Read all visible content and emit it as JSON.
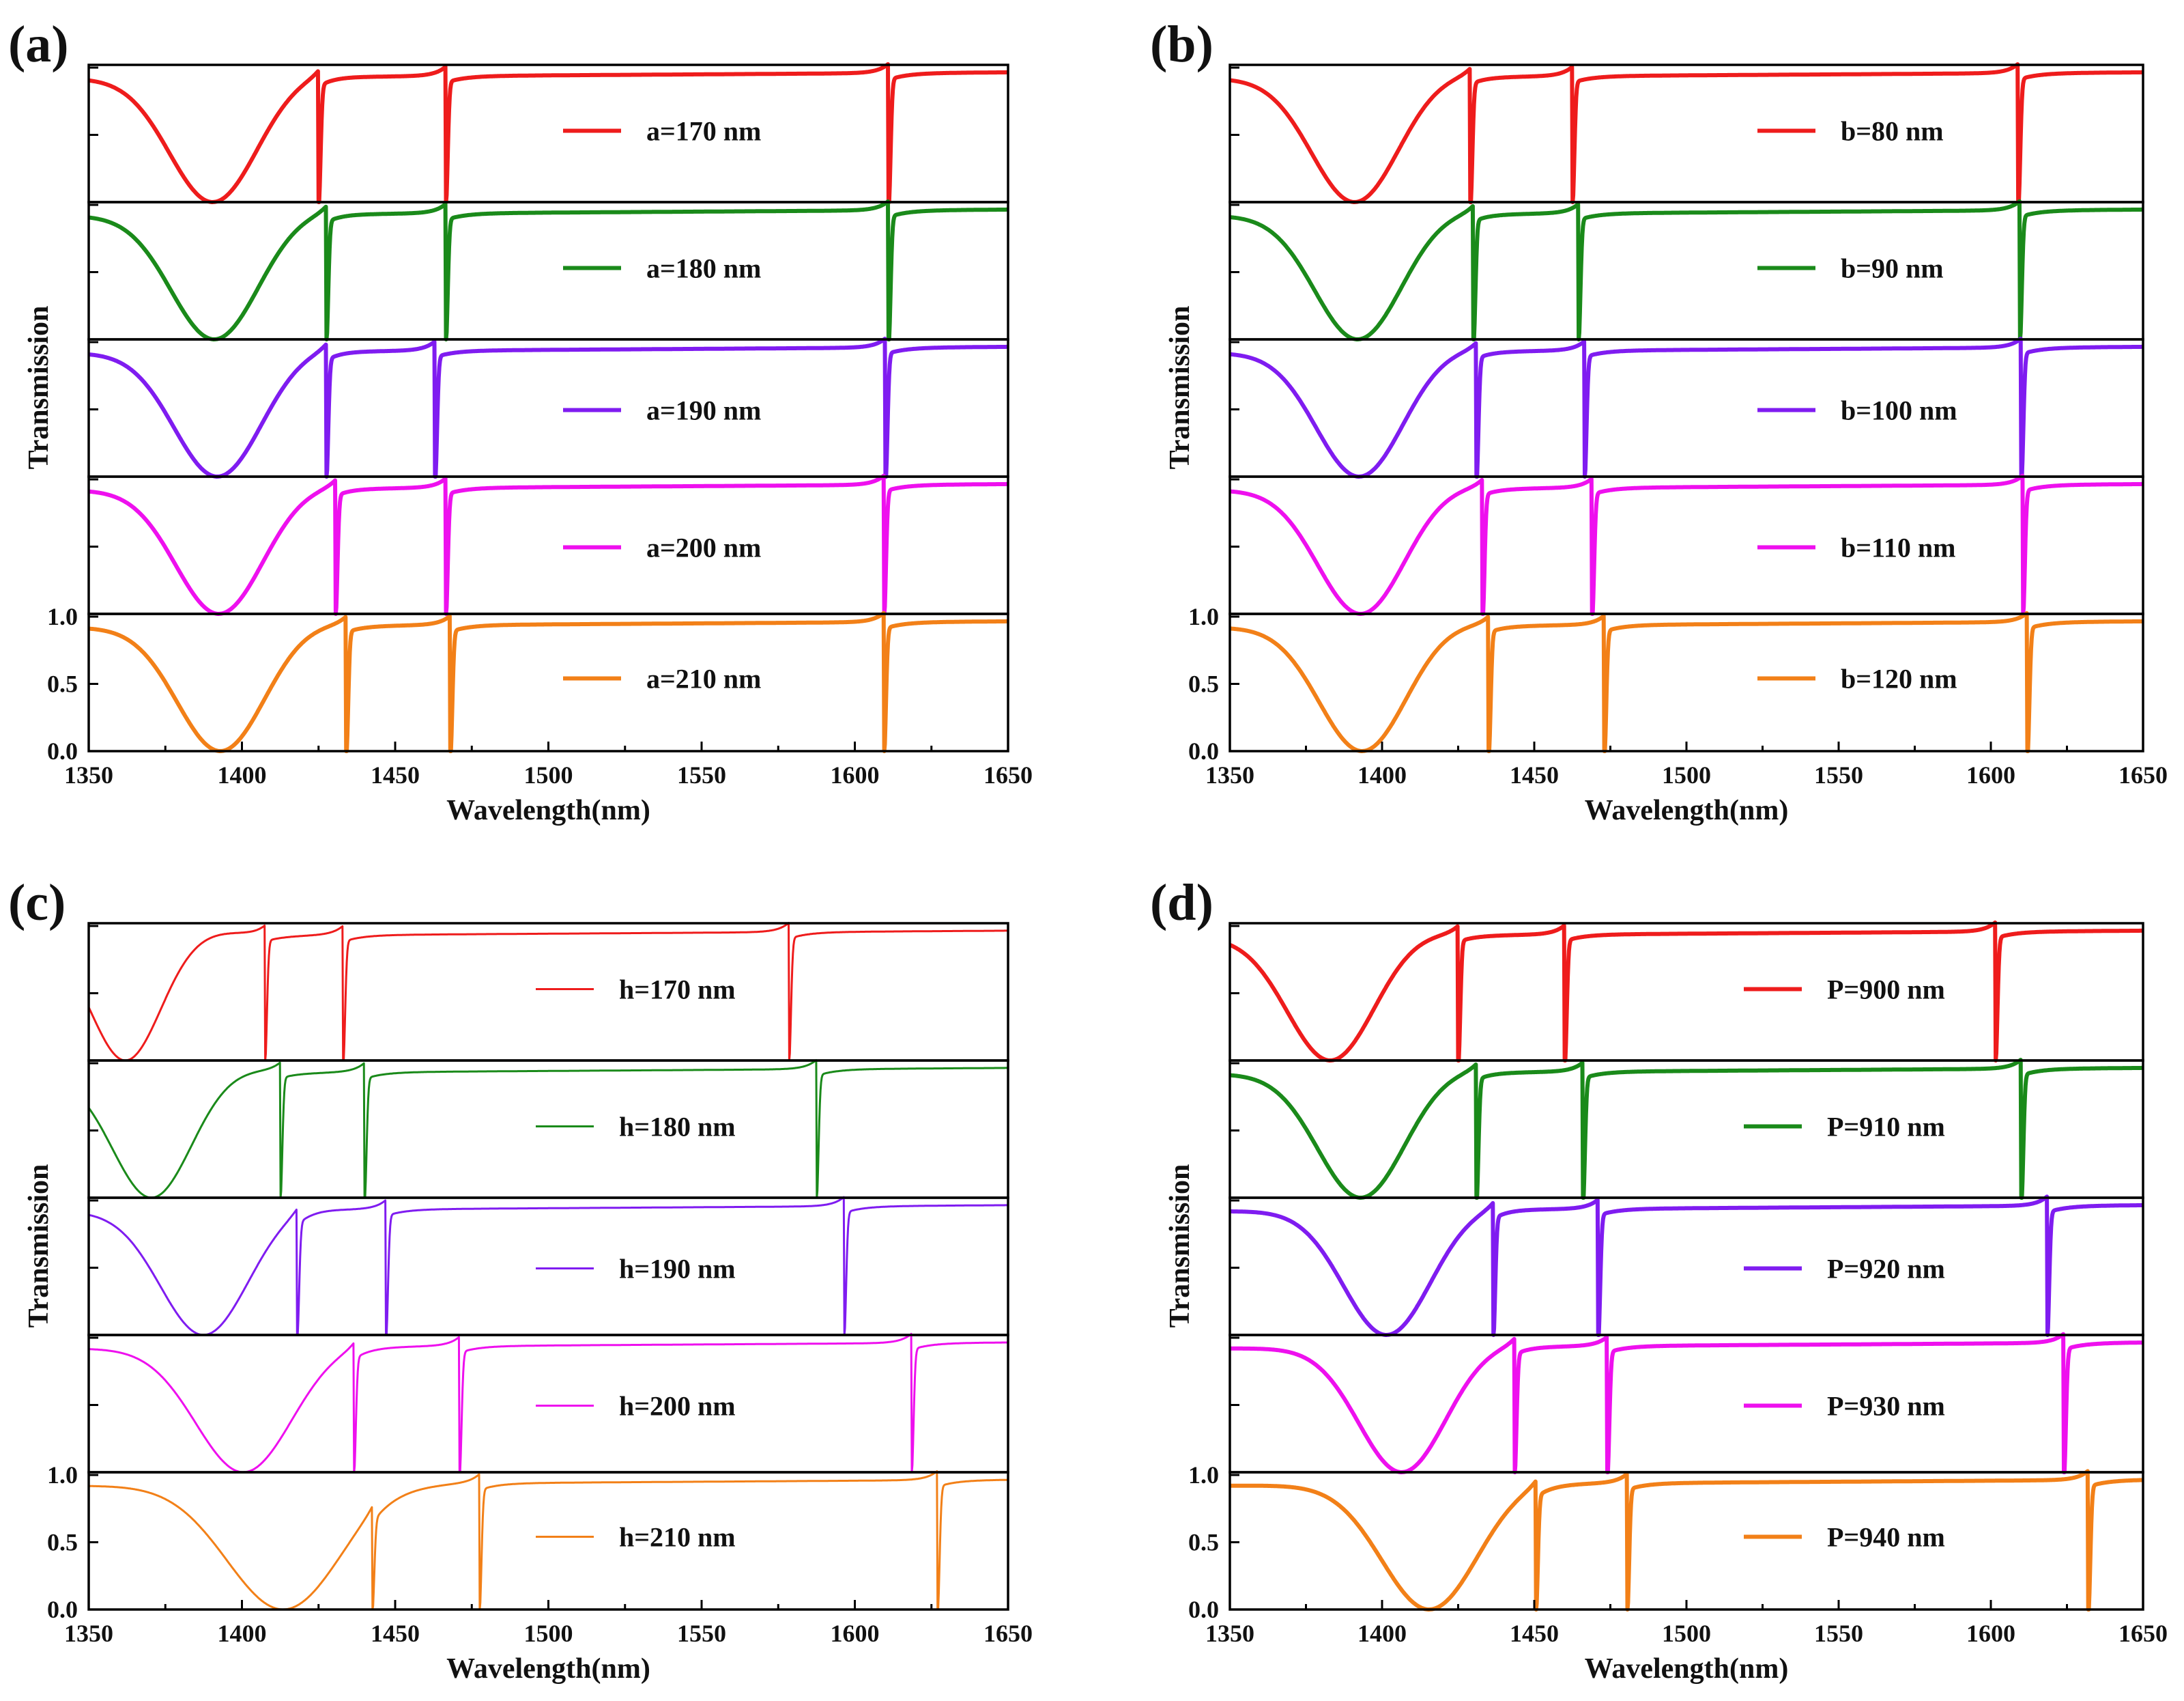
{
  "chart_data": [
    {
      "panel_label": "(a)",
      "type": "line",
      "xlabel": "Wavelength(nm)",
      "ylabel": "Transmission",
      "xlim": [
        1350,
        1650
      ],
      "x_ticks": [
        "1350",
        "1400",
        "1450",
        "1500",
        "1550",
        "1600",
        "1650"
      ],
      "ylim": [
        0,
        1
      ],
      "y_ticks": [
        "0.0",
        "0.5",
        "1.0"
      ],
      "series": [
        {
          "name": "a=170 nm",
          "color": "#ee1c1c",
          "baseline": 0.92,
          "broad_dip": 1390.5,
          "broad_width": 20,
          "fano": [
            1425,
            1466.5,
            1611
          ]
        },
        {
          "name": "a=180 nm",
          "color": "#1a8a1a",
          "baseline": 0.92,
          "broad_dip": 1391,
          "broad_width": 20,
          "fano": [
            1427.5,
            1466.5,
            1611
          ]
        },
        {
          "name": "a=190 nm",
          "color": "#7f1cf0",
          "baseline": 0.92,
          "broad_dip": 1392,
          "broad_width": 20,
          "fano": [
            1427.5,
            1463,
            1610
          ]
        },
        {
          "name": "a=200 nm",
          "color": "#ee10ee",
          "baseline": 0.92,
          "broad_dip": 1392.5,
          "broad_width": 20,
          "fano": [
            1430.5,
            1466.5,
            1609.5
          ]
        },
        {
          "name": "a=210 nm",
          "color": "#f28018",
          "baseline": 0.92,
          "broad_dip": 1393,
          "broad_width": 20,
          "fano": [
            1434,
            1468,
            1609.5
          ]
        }
      ]
    },
    {
      "panel_label": "(b)",
      "type": "line",
      "xlabel": "Wavelength(nm)",
      "ylabel": "Transmission",
      "xlim": [
        1350,
        1650
      ],
      "x_ticks": [
        "1350",
        "1400",
        "1450",
        "1500",
        "1550",
        "1600",
        "1650"
      ],
      "ylim": [
        0,
        1
      ],
      "y_ticks": [
        "0.0",
        "0.5",
        "1.0"
      ],
      "series": [
        {
          "name": "b=80 nm",
          "color": "#ee1c1c",
          "baseline": 0.92,
          "broad_dip": 1391,
          "broad_width": 20,
          "fano": [
            1429,
            1462.5,
            1609
          ]
        },
        {
          "name": "b=90 nm",
          "color": "#1a8a1a",
          "baseline": 0.92,
          "broad_dip": 1392,
          "broad_width": 20,
          "fano": [
            1430,
            1464.5,
            1609.5
          ]
        },
        {
          "name": "b=100 nm",
          "color": "#7f1cf0",
          "baseline": 0.92,
          "broad_dip": 1392.5,
          "broad_width": 20,
          "fano": [
            1431,
            1466.5,
            1610
          ]
        },
        {
          "name": "b=110 nm",
          "color": "#ee10ee",
          "baseline": 0.92,
          "broad_dip": 1393,
          "broad_width": 20,
          "fano": [
            1433,
            1469,
            1610.5
          ]
        },
        {
          "name": "b=120 nm",
          "color": "#f28018",
          "baseline": 0.92,
          "broad_dip": 1393.5,
          "broad_width": 20,
          "fano": [
            1435,
            1473,
            1612
          ]
        }
      ]
    },
    {
      "panel_label": "(c)",
      "type": "line",
      "xlabel": "Wavelength(nm)",
      "ylabel": "Transmission",
      "xlim": [
        1350,
        1650
      ],
      "x_ticks": [
        "1350",
        "1400",
        "1450",
        "1500",
        "1550",
        "1600",
        "1650"
      ],
      "ylim": [
        0,
        1
      ],
      "y_ticks": [
        "0.0",
        "0.5",
        "1.0"
      ],
      "series": [
        {
          "name": "h=170 nm",
          "color": "#ee1c1c",
          "baseline": 0.92,
          "broad_dip": 1362,
          "broad_width": 16,
          "fano": [
            1407.5,
            1433,
            1578.5
          ]
        },
        {
          "name": "h=180 nm",
          "color": "#1a8a1a",
          "baseline": 0.92,
          "broad_dip": 1370.5,
          "broad_width": 18,
          "fano": [
            1412.5,
            1440,
            1587.5
          ]
        },
        {
          "name": "h=190 nm",
          "color": "#7f1cf0",
          "baseline": 0.92,
          "broad_dip": 1387.5,
          "broad_width": 20,
          "fano": [
            1418,
            1447,
            1596.5
          ]
        },
        {
          "name": "h=200 nm",
          "color": "#ee10ee",
          "baseline": 0.92,
          "broad_dip": 1400.5,
          "broad_width": 22,
          "fano": [
            1436.5,
            1471,
            1618.5
          ]
        },
        {
          "name": "h=210 nm",
          "color": "#f28018",
          "baseline": 0.92,
          "broad_dip": 1413.5,
          "broad_width": 26,
          "fano": [
            1442.5,
            1477.5,
            1627
          ]
        }
      ]
    },
    {
      "panel_label": "(d)",
      "type": "line",
      "xlabel": "Wavelength(nm)",
      "ylabel": "Transmission",
      "xlim": [
        1350,
        1650
      ],
      "x_ticks": [
        "1350",
        "1400",
        "1450",
        "1500",
        "1550",
        "1600",
        "1650"
      ],
      "ylim": [
        0,
        1
      ],
      "y_ticks": [
        "0.0",
        "0.5",
        "1.0"
      ],
      "series": [
        {
          "name": "P=900 nm",
          "color": "#ee1c1c",
          "baseline": 0.92,
          "broad_dip": 1383,
          "broad_width": 20,
          "fano": [
            1425,
            1460,
            1601.5
          ]
        },
        {
          "name": "P=910 nm",
          "color": "#1a8a1a",
          "baseline": 0.92,
          "broad_dip": 1393,
          "broad_width": 20,
          "fano": [
            1431,
            1466,
            1610
          ]
        },
        {
          "name": "P=920 nm",
          "color": "#7f1cf0",
          "baseline": 0.92,
          "broad_dip": 1401.5,
          "broad_width": 20,
          "fano": [
            1436.5,
            1471,
            1618.5
          ]
        },
        {
          "name": "P=930 nm",
          "color": "#ee10ee",
          "baseline": 0.92,
          "broad_dip": 1406.5,
          "broad_width": 20,
          "fano": [
            1443.5,
            1474,
            1624
          ]
        },
        {
          "name": "P=940 nm",
          "color": "#f28018",
          "baseline": 0.92,
          "broad_dip": 1415.5,
          "broad_width": 22,
          "fano": [
            1450.5,
            1480.5,
            1632
          ]
        }
      ]
    }
  ]
}
